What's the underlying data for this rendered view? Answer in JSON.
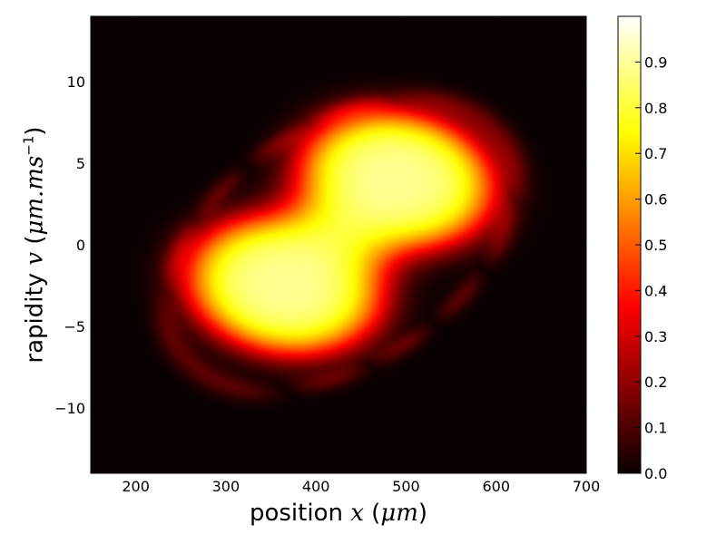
{
  "chart_data": {
    "type": "heatmap",
    "title": "",
    "xlabel": {
      "prefix": "position ",
      "var": "x",
      "unit_open": " (",
      "unit": "μm",
      "unit_close": ")"
    },
    "ylabel": {
      "prefix": "rapidity ",
      "var": "v",
      "unit_open": " (",
      "unit": "μm.ms",
      "exponent": "−1",
      "unit_close": ")"
    },
    "xlim": [
      150,
      700
    ],
    "ylim": [
      -14,
      14
    ],
    "xticks": [
      200,
      300,
      400,
      500,
      600,
      700
    ],
    "yticks": [
      -10,
      -5,
      0,
      5,
      10
    ],
    "ytick_labels": [
      "−10",
      "−5",
      "0",
      "5",
      "10"
    ],
    "colormap": "hot",
    "color_range": [
      0.0,
      1.0
    ],
    "colorbar_ticks": [
      0.0,
      0.1,
      0.2,
      0.3,
      0.4,
      0.5,
      0.6,
      0.7,
      0.8,
      0.9
    ],
    "colorbar_tick_labels": [
      "0.0",
      "0.1",
      "0.2",
      "0.3",
      "0.4",
      "0.5",
      "0.6",
      "0.7",
      "0.8",
      "0.9"
    ],
    "distribution": {
      "description": "two overlapping bright lobes with faint outer ripple arcs",
      "lobes": [
        {
          "x": 365,
          "v": -2.5,
          "peak": 1.0
        },
        {
          "x": 490,
          "v": 4.0,
          "peak": 1.0
        }
      ]
    }
  }
}
